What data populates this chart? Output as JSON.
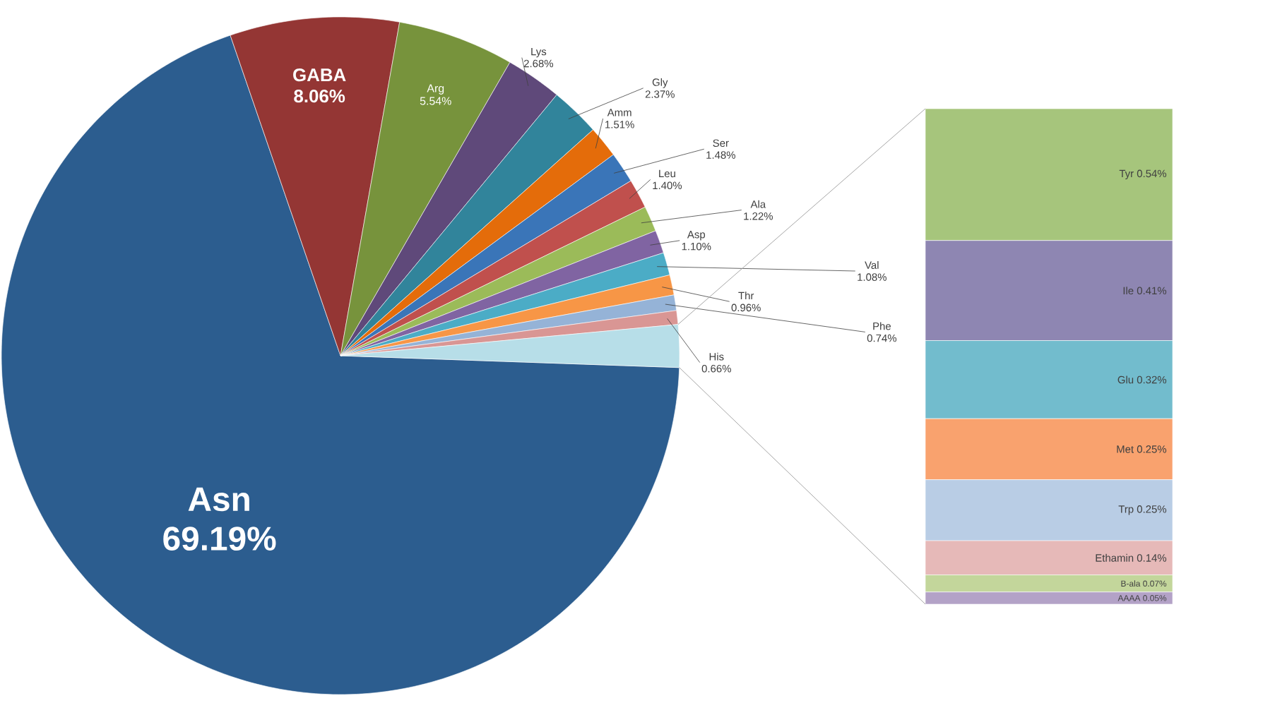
{
  "chart_data": [
    {
      "type": "pie",
      "categories": [
        "Asn",
        "GABA",
        "Arg",
        "Lys",
        "Gly",
        "Amm",
        "Ser",
        "Leu",
        "Ala",
        "Asp",
        "Val",
        "Thr",
        "Phe",
        "His",
        null
      ],
      "values": [
        69.19,
        8.06,
        5.54,
        2.68,
        2.37,
        1.51,
        1.48,
        1.4,
        1.22,
        1.1,
        1.08,
        0.96,
        0.74,
        0.66,
        2.03
      ],
      "colors": [
        "#2c5d8f",
        "#943634",
        "#77933c",
        "#5f497a",
        "#31849b",
        "#e46c0a",
        "#3a75b8",
        "#c0504d",
        "#9bbb59",
        "#8064a2",
        "#4bacc6",
        "#f79646",
        "#95b3d7",
        "#d99694",
        "#b7dee8"
      ],
      "value_labels": [
        "69.19%",
        "8.06%",
        "5.54%",
        "2.68%",
        "2.37%",
        "1.51%",
        "1.48%",
        "1.40%",
        "1.22%",
        "1.10%",
        "1.08%",
        "0.96%",
        "0.74%",
        "0.66%",
        null
      ]
    },
    {
      "type": "bar",
      "stacked": true,
      "categories": [
        null
      ],
      "series": [
        {
          "name": "AAAA",
          "color": "#b3a2c7",
          "values": [
            0.05
          ],
          "value_labels": [
            "0.05%"
          ]
        },
        {
          "name": "B-ala",
          "color": "#c3d69b",
          "values": [
            0.07
          ],
          "value_labels": [
            "0.07%"
          ]
        },
        {
          "name": "Ethamin",
          "color": "#e6b9b8",
          "values": [
            0.14
          ],
          "value_labels": [
            "0.14%"
          ]
        },
        {
          "name": "Trp",
          "color": "#b9cde5",
          "values": [
            0.25
          ],
          "value_labels": [
            "0.25%"
          ]
        },
        {
          "name": "Met",
          "color": "#f9a26e",
          "values": [
            0.25
          ],
          "value_labels": [
            "0.25%"
          ]
        },
        {
          "name": "Glu",
          "color": "#72bccd",
          "values": [
            0.32
          ],
          "value_labels": [
            "0.32%"
          ]
        },
        {
          "name": "Ile",
          "color": "#8e86b2",
          "values": [
            0.41
          ],
          "value_labels": [
            "0.41%"
          ]
        },
        {
          "name": "Tyr",
          "color": "#a6c57c",
          "values": [
            0.54
          ],
          "value_labels": [
            "0.54%"
          ]
        }
      ]
    }
  ]
}
